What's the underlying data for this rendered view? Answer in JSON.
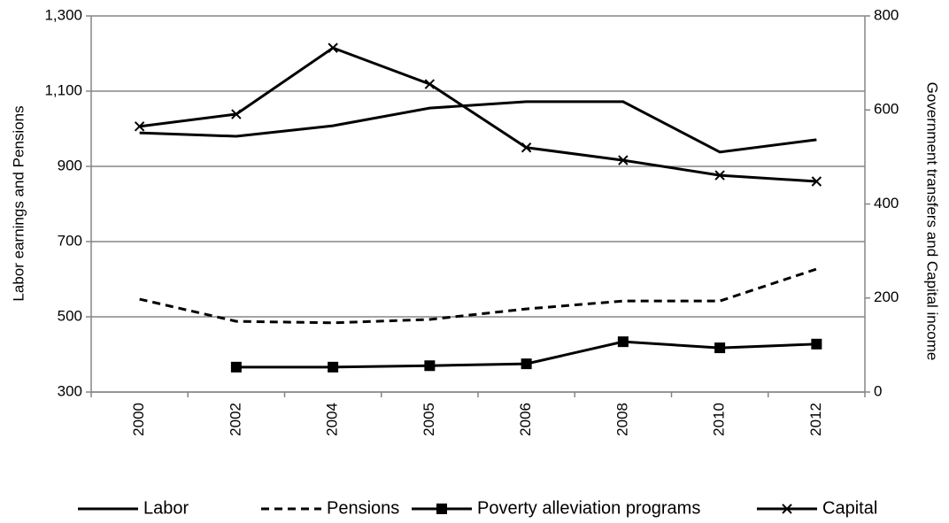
{
  "chart_data": {
    "type": "line",
    "y_label": "Labor earnings and Pensions",
    "y2_label": "Government transfers and Capital income",
    "categories": [
      "2000",
      "2002",
      "2004",
      "2005",
      "2006",
      "2008",
      "2010",
      "2012"
    ],
    "series": [
      {
        "name": "Labor",
        "color": "#000000",
        "line_style": "solid",
        "marker": "none",
        "axis": "y",
        "values": [
          989,
          980,
          1008,
          1055,
          1072,
          1072,
          938,
          971
        ]
      },
      {
        "name": "Pensions",
        "color": "#000000",
        "line_style": "dashed",
        "marker": "none",
        "axis": "y",
        "values": [
          547,
          488,
          484,
          493,
          521,
          542,
          542,
          627
        ]
      },
      {
        "name": "Poverty alleviation programs",
        "color": "#000000",
        "line_style": "solid",
        "marker": "square",
        "axis": "y2",
        "values": [
          null,
          53,
          53,
          56,
          60,
          107,
          94,
          102
        ]
      },
      {
        "name": "Capital",
        "color": "#000000",
        "line_style": "solid",
        "marker": "x",
        "axis": "y2",
        "values": [
          565,
          591,
          732,
          655,
          520,
          493,
          461,
          448
        ]
      }
    ],
    "ylim": [
      300,
      1300
    ],
    "yticks": [
      300,
      500,
      700,
      900,
      {
        "value": 1100,
        "label": "1,100"
      },
      {
        "value": 1300,
        "label": "1,300"
      }
    ],
    "y2lim": [
      0,
      800
    ],
    "y2ticks": [
      0,
      200,
      400,
      600,
      800
    ],
    "grid": true,
    "legend": "bottom"
  }
}
